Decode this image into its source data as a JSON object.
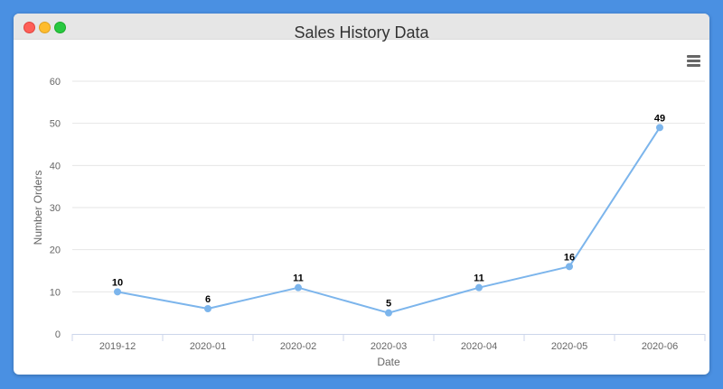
{
  "window": {
    "controls": [
      "close",
      "minimize",
      "maximize"
    ]
  },
  "menu_icon": "hamburger-menu-icon",
  "chart_data": {
    "type": "line",
    "title": "Sales History Data",
    "xlabel": "Date",
    "ylabel": "Number Orders",
    "categories": [
      "2019-12",
      "2020-01",
      "2020-02",
      "2020-03",
      "2020-04",
      "2020-05",
      "2020-06"
    ],
    "series": [
      {
        "values": [
          10,
          6,
          11,
          5,
          11,
          16,
          49
        ],
        "color": "#7cb5ec"
      }
    ],
    "ylim": [
      0,
      60
    ],
    "yticks": [
      0,
      10,
      20,
      30,
      40,
      50,
      60
    ],
    "grid": true,
    "data_labels": true,
    "legend": "none"
  }
}
